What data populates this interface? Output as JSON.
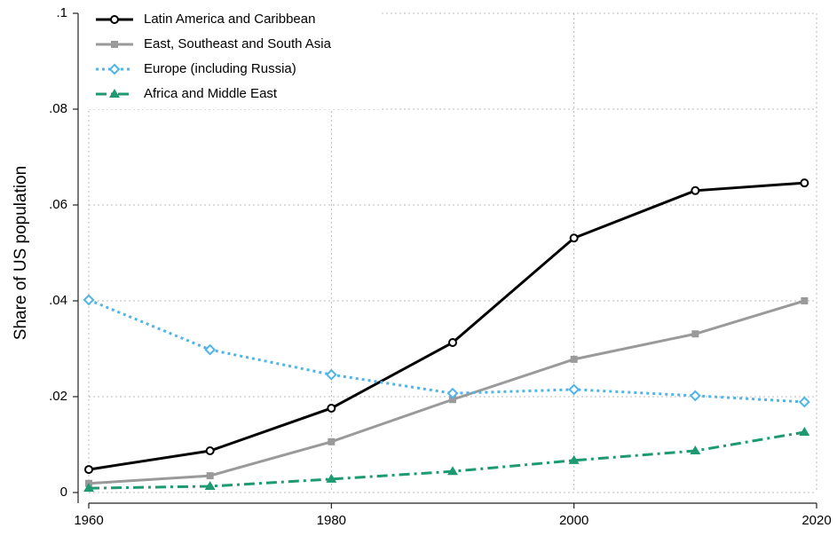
{
  "chart_data": {
    "type": "line",
    "y_label": "Share of US population",
    "x": [
      1960,
      1970,
      1980,
      1990,
      2000,
      2010,
      2019
    ],
    "series": [
      {
        "name": "Latin America and Caribbean",
        "color": "#000000",
        "marker": "circle",
        "line_style": "solid",
        "values": [
          0.0048,
          0.0087,
          0.0176,
          0.0313,
          0.0531,
          0.063,
          0.0646
        ]
      },
      {
        "name": "East, Southeast and South Asia",
        "color": "#9a9a9a",
        "marker": "square",
        "line_style": "solid",
        "values": [
          0.0019,
          0.0035,
          0.0106,
          0.0194,
          0.0278,
          0.0331,
          0.04
        ]
      },
      {
        "name": "Europe (including Russia)",
        "color": "#4fb4e8",
        "marker": "diamond",
        "line_style": "dot",
        "values": [
          0.0402,
          0.0298,
          0.0246,
          0.0207,
          0.0215,
          0.0202,
          0.0189
        ]
      },
      {
        "name": "Africa and Middle East",
        "color": "#1d9a72",
        "marker": "triangle",
        "line_style": "dashdot",
        "values": [
          0.0009,
          0.0013,
          0.0028,
          0.0044,
          0.0067,
          0.0087,
          0.0126
        ]
      }
    ],
    "xlim": [
      1960,
      2020
    ],
    "xticks": [
      1960,
      1980,
      2000,
      2020
    ],
    "ylim": [
      0,
      0.1
    ],
    "yticks": [
      0,
      {
        "value": 0.02,
        "label": ".02"
      },
      {
        "value": 0.04,
        "label": ".04"
      },
      {
        "value": 0.06,
        "label": ".06"
      },
      {
        "value": 0.08,
        "label": ".08"
      },
      {
        "value": 0.1,
        "label": ".1"
      }
    ],
    "grid": true,
    "legend": "top-left"
  }
}
